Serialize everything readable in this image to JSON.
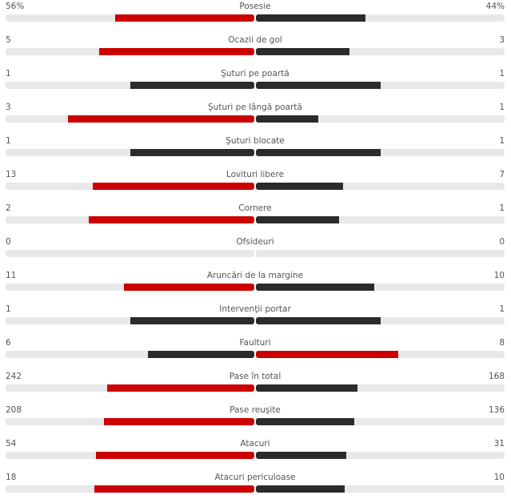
{
  "colors": {
    "leader": "#cc0000",
    "other": "#2b2b2b",
    "track": "#e8e8e8"
  },
  "stats": [
    {
      "label": "Posesie",
      "home": "56%",
      "away": "44%",
      "h": 56,
      "a": 44
    },
    {
      "label": "Ocazii de gol",
      "home": "5",
      "away": "3",
      "h": 5,
      "a": 3
    },
    {
      "label": "Şuturi pe poartă",
      "home": "1",
      "away": "1",
      "h": 1,
      "a": 1
    },
    {
      "label": "Şuturi pe lângă poartă",
      "home": "3",
      "away": "1",
      "h": 3,
      "a": 1
    },
    {
      "label": "Şuturi blocate",
      "home": "1",
      "away": "1",
      "h": 1,
      "a": 1
    },
    {
      "label": "Lovituri libere",
      "home": "13",
      "away": "7",
      "h": 13,
      "a": 7
    },
    {
      "label": "Cornere",
      "home": "2",
      "away": "1",
      "h": 2,
      "a": 1
    },
    {
      "label": "Ofsideuri",
      "home": "0",
      "away": "0",
      "h": 0,
      "a": 0
    },
    {
      "label": "Aruncări de la margine",
      "home": "11",
      "away": "10",
      "h": 11,
      "a": 10
    },
    {
      "label": "Intervenţii portar",
      "home": "1",
      "away": "1",
      "h": 1,
      "a": 1
    },
    {
      "label": "Faulturi",
      "home": "6",
      "away": "8",
      "h": 6,
      "a": 8
    },
    {
      "label": "Pase în total",
      "home": "242",
      "away": "168",
      "h": 242,
      "a": 168
    },
    {
      "label": "Pase reuşite",
      "home": "208",
      "away": "136",
      "h": 208,
      "a": 136
    },
    {
      "label": "Atacuri",
      "home": "54",
      "away": "31",
      "h": 54,
      "a": 31
    },
    {
      "label": "Atacuri periculoase",
      "home": "18",
      "away": "10",
      "h": 18,
      "a": 10
    }
  ]
}
